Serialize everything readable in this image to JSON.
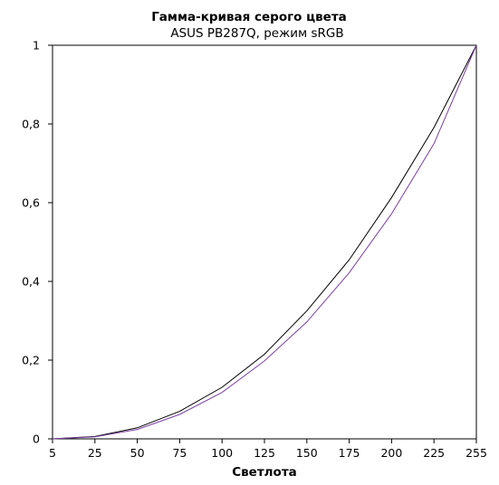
{
  "chart_data": {
    "type": "line",
    "title": "Гамма-кривая  серого цвета",
    "subtitle": "ASUS PB287Q, режим sRGB",
    "xlabel": "Светлота",
    "ylabel": "",
    "x": [
      5,
      25,
      50,
      75,
      100,
      125,
      150,
      175,
      200,
      225,
      255
    ],
    "x_tick_labels": [
      "5",
      "25",
      "50",
      "75",
      "100",
      "125",
      "150",
      "175",
      "200",
      "225",
      "255"
    ],
    "y_ticks": [
      0,
      0.2,
      0.4,
      0.6,
      0.8,
      1
    ],
    "y_tick_labels": [
      "0",
      "0,2",
      "0,4",
      "0,6",
      "0,8",
      "1"
    ],
    "ylim": [
      0,
      1
    ],
    "grid": false,
    "legend": "none",
    "series": [
      {
        "color": "#000000",
        "values": [
          0.0,
          0.006,
          0.028,
          0.07,
          0.131,
          0.215,
          0.325,
          0.455,
          0.613,
          0.791,
          1.0
        ]
      },
      {
        "color": "#7b3fa1",
        "values": [
          0.0,
          0.005,
          0.024,
          0.062,
          0.118,
          0.198,
          0.297,
          0.422,
          0.572,
          0.75,
          1.0
        ]
      }
    ]
  }
}
